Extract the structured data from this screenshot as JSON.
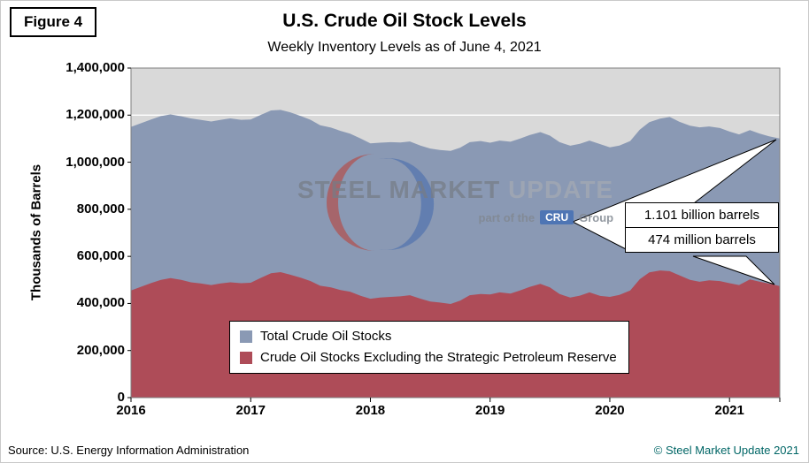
{
  "figure_label": "Figure 4",
  "title": "U.S. Crude Oil Stock Levels",
  "subtitle": "Weekly Inventory Levels as of June 4, 2021",
  "source": "Source: U.S. Energy Information Administration",
  "copyright": "© Steel Market Update 2021",
  "watermark": {
    "brand_strong": "STEEL MARKET",
    "brand_light": "UPDATE",
    "tagline_prefix": "part of the",
    "tagline_box": "CRU",
    "tagline_suffix": "Group"
  },
  "callouts": [
    {
      "label": "1.101 billion barrels",
      "points_to": "Total Crude Oil Stocks"
    },
    {
      "label": "474 million barrels",
      "points_to": "Crude Oil Stocks Excluding the Strategic Petroleum Reserve"
    }
  ],
  "legend": [
    {
      "label": "Total Crude Oil Stocks",
      "color": "#8A99B4"
    },
    {
      "label": "Crude Oil Stocks Excluding the Strategic Petroleum Reserve",
      "color": "#AE4C58"
    }
  ],
  "colors": {
    "plot_bg": "#D9D9D9",
    "gridline": "#FFFFFF",
    "plot_border": "#7F7F7F",
    "total_area": "#8A99B4",
    "exspr_area": "#AE4C58",
    "copyright_text": "#006666"
  },
  "chart_data": {
    "type": "area",
    "title": "U.S. Crude Oil Stock Levels",
    "subtitle": "Weekly Inventory Levels as of June 4, 2021",
    "xlabel": "",
    "ylabel": "Thousands of Barrels",
    "ylim": [
      0,
      1400000
    ],
    "ytick_step": 200000,
    "xticks": [
      2016,
      2017,
      2018,
      2019,
      2020,
      2021
    ],
    "x_unit": "decimal year (weekly inventory samples)",
    "grid": "horizontal white gridlines on gray plot background",
    "legend_position": "inside bottom center",
    "x": [
      2016.0,
      2016.08,
      2016.17,
      2016.25,
      2016.33,
      2016.42,
      2016.5,
      2016.58,
      2016.67,
      2016.75,
      2016.83,
      2016.92,
      2017.0,
      2017.08,
      2017.17,
      2017.25,
      2017.33,
      2017.42,
      2017.5,
      2017.58,
      2017.67,
      2017.75,
      2017.83,
      2017.92,
      2018.0,
      2018.08,
      2018.17,
      2018.25,
      2018.33,
      2018.42,
      2018.5,
      2018.58,
      2018.67,
      2018.75,
      2018.83,
      2018.92,
      2019.0,
      2019.08,
      2019.17,
      2019.25,
      2019.33,
      2019.42,
      2019.5,
      2019.58,
      2019.67,
      2019.75,
      2019.83,
      2019.92,
      2020.0,
      2020.08,
      2020.17,
      2020.25,
      2020.33,
      2020.42,
      2020.5,
      2020.58,
      2020.67,
      2020.75,
      2020.83,
      2020.92,
      2021.0,
      2021.08,
      2021.17,
      2021.25,
      2021.33,
      2021.42
    ],
    "series": [
      {
        "name": "Total Crude Oil Stocks",
        "color": "#8A99B4",
        "final_label": "1.101 billion barrels",
        "values": [
          1150000,
          1165000,
          1182000,
          1196000,
          1203000,
          1195000,
          1186000,
          1180000,
          1173000,
          1180000,
          1186000,
          1180000,
          1181000,
          1200000,
          1220000,
          1222000,
          1212000,
          1196000,
          1180000,
          1157000,
          1147000,
          1133000,
          1121000,
          1100000,
          1080000,
          1083000,
          1085000,
          1084000,
          1088000,
          1070000,
          1058000,
          1052000,
          1048000,
          1062000,
          1085000,
          1090000,
          1083000,
          1092000,
          1087000,
          1100000,
          1115000,
          1128000,
          1113000,
          1085000,
          1070000,
          1078000,
          1092000,
          1077000,
          1063000,
          1071000,
          1090000,
          1138000,
          1170000,
          1185000,
          1192000,
          1172000,
          1155000,
          1148000,
          1152000,
          1145000,
          1130000,
          1118000,
          1136000,
          1122000,
          1110000,
          1101000
        ]
      },
      {
        "name": "Crude Oil Stocks Excluding the Strategic Petroleum Reserve",
        "color": "#AE4C58",
        "final_label": "474 million barrels",
        "values": [
          455000,
          470000,
          487000,
          500000,
          508000,
          500000,
          490000,
          485000,
          478000,
          485000,
          490000,
          486000,
          488000,
          508000,
          528000,
          533000,
          522000,
          509000,
          495000,
          475000,
          468000,
          457000,
          450000,
          432000,
          420000,
          425000,
          428000,
          430000,
          435000,
          420000,
          408000,
          404000,
          398000,
          412000,
          435000,
          440000,
          438000,
          447000,
          442000,
          455000,
          470000,
          483000,
          468000,
          440000,
          425000,
          433000,
          447000,
          432000,
          428000,
          436000,
          455000,
          503000,
          532000,
          540000,
          537000,
          520000,
          500000,
          492000,
          498000,
          495000,
          486000,
          478000,
          502000,
          493000,
          484000,
          474000
        ]
      }
    ]
  }
}
